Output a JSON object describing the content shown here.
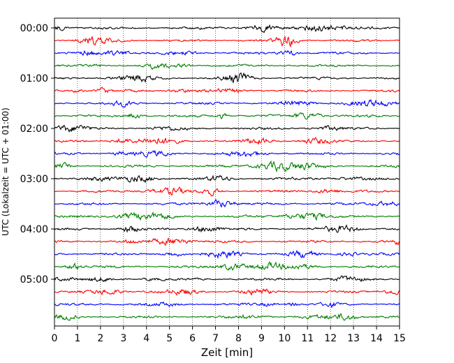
{
  "chart_data": {
    "type": "line",
    "title": "",
    "xlabel": "Zeit  [min]",
    "ylabel": "UTC (Lokalzeit = UTC + 01:00)",
    "xlim": [
      0,
      15
    ],
    "x_ticks": [
      "0",
      "1",
      "2",
      "3",
      "4",
      "5",
      "6",
      "7",
      "8",
      "9",
      "10",
      "11",
      "12",
      "13",
      "14",
      "15"
    ],
    "y_ticks": [
      "00:00",
      "01:00",
      "02:00",
      "03:00",
      "04:00",
      "05:00"
    ],
    "trace_interval_minutes": 15,
    "trace_count": 24,
    "trace_colors": [
      "#000000",
      "#ff0000",
      "#0000ff",
      "#007f00"
    ],
    "grid": "vertical dotted at each minute",
    "legend": "none"
  }
}
